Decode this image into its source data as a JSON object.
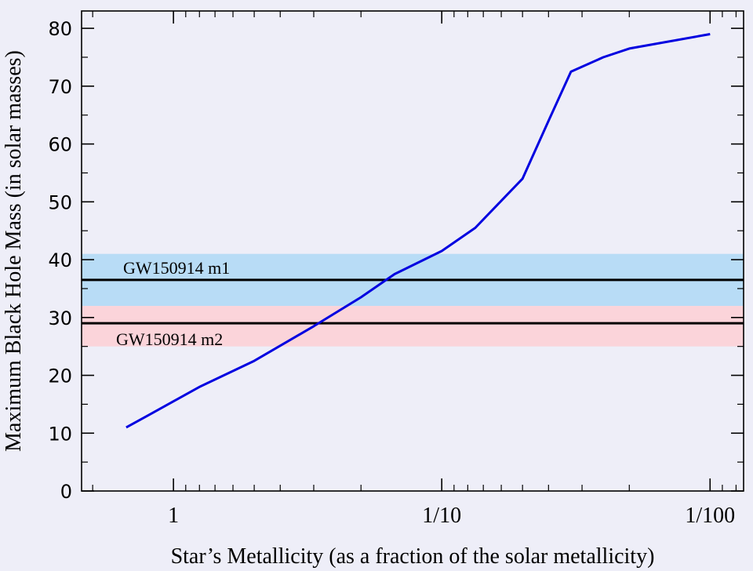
{
  "chart_data": {
    "type": "line",
    "xlabel": "Star’s Metallicity (as a  fraction of the solar metallicity)",
    "ylabel": "Maximum Black Hole Mass (in solar masses)",
    "x_scale": "log",
    "x_direction": "decreasing metallicity to the right",
    "xlim": [
      2.2,
      0.0075
    ],
    "ylim": [
      0,
      83
    ],
    "x_ticks": [
      {
        "value": 1,
        "label": "1"
      },
      {
        "value": 0.1,
        "label": "1/10"
      },
      {
        "value": 0.01,
        "label": "1/100"
      }
    ],
    "y_ticks": [
      0,
      10,
      20,
      30,
      40,
      50,
      60,
      70,
      80
    ],
    "grid": false,
    "series": [
      {
        "color": "#0000e0",
        "x": [
          1.5,
          1.25,
          1.0,
          0.8,
          0.5,
          0.3,
          0.2,
          0.15,
          0.1,
          0.075,
          0.05,
          0.04,
          0.033,
          0.025,
          0.02,
          0.01
        ],
        "y": [
          11,
          13,
          15.5,
          18,
          22.5,
          28.5,
          33.5,
          37.5,
          41.5,
          45.5,
          54,
          64,
          72.5,
          75,
          76.5,
          79
        ]
      }
    ],
    "bands": [
      {
        "label": "",
        "y_range": [
          32,
          41
        ],
        "color": "#b8dcf6"
      },
      {
        "label": "",
        "y_range": [
          25,
          32
        ],
        "color": "#fbd4da"
      }
    ],
    "reference_lines": [
      {
        "label": "GW150914 m1",
        "y": 36.5,
        "color": "#000000"
      },
      {
        "label": "GW150914 m2",
        "y": 29,
        "color": "#000000"
      }
    ]
  }
}
